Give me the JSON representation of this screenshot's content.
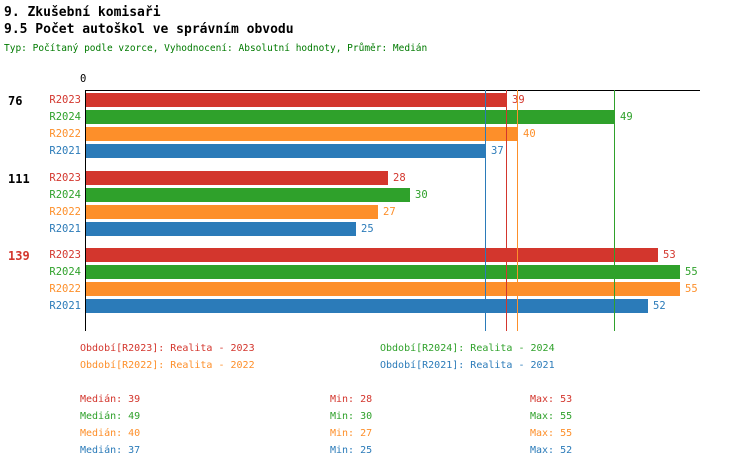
{
  "header": {
    "title1": "9. Zkušební komisaři",
    "title2": "9.5 Počet autoškol ve správním obvodu",
    "subtitle": "Typ: Počítaný podle vzorce, Vyhodnocení: Absolutní hodnoty, Průměr: Medián"
  },
  "chart_data": {
    "type": "bar",
    "orientation": "horizontal",
    "x_axis": {
      "zero_label": "0",
      "max": 57
    },
    "series_order": [
      "R2023",
      "R2024",
      "R2022",
      "R2021"
    ],
    "series_colors": {
      "R2023": "#d3362d",
      "R2024": "#2fa12b",
      "R2022": "#fd8f2a",
      "R2021": "#2b7bb9"
    },
    "groups": [
      {
        "label": "76",
        "label_color": "#000000",
        "values": {
          "R2023": 39,
          "R2024": 49,
          "R2022": 40,
          "R2021": 37
        }
      },
      {
        "label": "111",
        "label_color": "#000000",
        "values": {
          "R2023": 28,
          "R2024": 30,
          "R2022": 27,
          "R2021": 25
        }
      },
      {
        "label": "139",
        "label_color": "#d3362d",
        "values": {
          "R2023": 53,
          "R2024": 55,
          "R2022": 55,
          "R2021": 52
        }
      }
    ],
    "median_lines": {
      "R2023": 39,
      "R2024": 49,
      "R2022": 40,
      "R2021": 37
    }
  },
  "legend": {
    "rows": [
      [
        {
          "series": "R2023",
          "label": "Období[R2023]: Realita - 2023"
        },
        {
          "series": "R2024",
          "label": "Období[R2024]: Realita - 2024"
        }
      ],
      [
        {
          "series": "R2022",
          "label": "Období[R2022]: Realita - 2022"
        },
        {
          "series": "R2021",
          "label": "Období[R2021]: Realita - 2021"
        }
      ]
    ]
  },
  "stats": {
    "rows": [
      {
        "series": "R2023",
        "median": "Medián: 39",
        "min": "Min: 28",
        "max": "Max: 53"
      },
      {
        "series": "R2024",
        "median": "Medián: 49",
        "min": "Min: 30",
        "max": "Max: 55"
      },
      {
        "series": "R2022",
        "median": "Medián: 40",
        "min": "Min: 27",
        "max": "Max: 55"
      },
      {
        "series": "R2021",
        "median": "Medián: 37",
        "min": "Min: 25",
        "max": "Max: 52"
      }
    ]
  }
}
